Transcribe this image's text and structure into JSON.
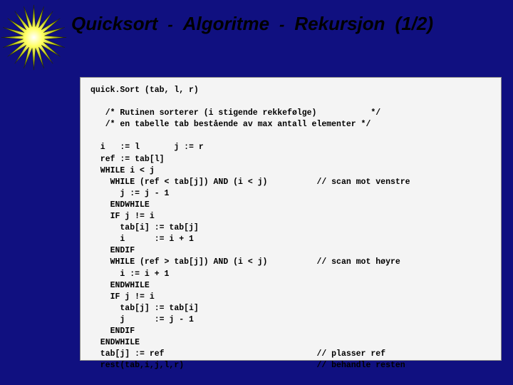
{
  "title": {
    "parts": [
      "Quicksort",
      "Algoritme",
      "Rekursjon",
      "(1/2)"
    ],
    "separator": "-",
    "color": "#000000",
    "font_size": 26,
    "italic": true,
    "bold": true
  },
  "slide": {
    "background_color": "#101080",
    "code_box_background": "#f4f4f4",
    "code_box_border": "#888888"
  },
  "starburst": {
    "gradient_stops": [
      "#ffffff",
      "#ffff66",
      "#99aa00",
      "#333300"
    ],
    "num_points": 20
  },
  "code": {
    "font_family": "Courier New",
    "font_size": 11.5,
    "font_weight": "bold",
    "color": "#000000",
    "lines": [
      "quick.Sort (tab, l, r)",
      "",
      "   /* Rutinen sorterer (i stigende rekkefølge)           */",
      "   /* en tabelle tab bestående av max antall elementer */",
      "",
      "  i   := l       j := r",
      "  ref := tab[l]",
      "  WHILE i < j",
      "    WHILE (ref < tab[j]) AND (i < j)          // scan mot venstre",
      "      j := j - 1",
      "    ENDWHILE",
      "    IF j != i",
      "      tab[i] := tab[j]",
      "      i      := i + 1",
      "    ENDIF",
      "    WHILE (ref > tab[j]) AND (i < j)          // scan mot høyre",
      "      i := i + 1",
      "    ENDWHILE",
      "    IF j != i",
      "      tab[j] := tab[i]",
      "      j      := j - 1",
      "    ENDIF",
      "  ENDWHILE",
      "  tab[j] := ref                               // plasser ref",
      "  rest(tab,i,j,l,r)                           // behandle resten"
    ]
  }
}
